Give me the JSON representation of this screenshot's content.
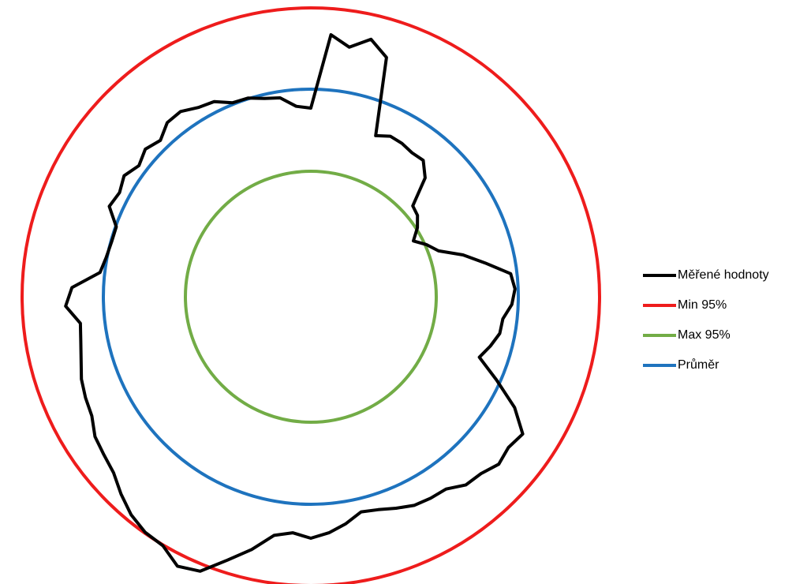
{
  "chart_data": {
    "type": "radar",
    "title": "",
    "series": [
      {
        "name": "Měřené hodnoty",
        "color": "#000000",
        "kind": "profile",
        "values": [
          239,
          333,
          320,
          335,
          318,
          220,
          227,
          226,
          223,
          224,
          209,
          173,
          170,
          161,
          148,
          161,
          172,
          200,
          225,
          255,
          259,
          255,
          245,
          244,
          236,
          227,
          258,
          294,
          320,
          315,
          319,
          311,
          309,
          298,
          297,
          295,
          289,
          283,
          280,
          291,
          300,
          306,
          300,
          306,
          329,
          350,
          375,
          381,
          367,
          365,
          358,
          347,
          335,
          330,
          326,
          316,
          313,
          309,
          302,
          297,
          294,
          311,
          303,
          269,
          264,
          262,
          262,
          280,
          276,
          282,
          274,
          281,
          275,
          286,
          287,
          279,
          276,
          265,
          264,
          258,
          255,
          242
        ]
      },
      {
        "name": "Min 95%",
        "color": "#ee1c1c",
        "kind": "ring",
        "value": 366
      },
      {
        "name": "Max 95%",
        "color": "#72ac46",
        "kind": "ring",
        "value": 159
      },
      {
        "name": "Průměr",
        "color": "#1e73be",
        "kind": "ring",
        "value": 263
      }
    ]
  }
}
